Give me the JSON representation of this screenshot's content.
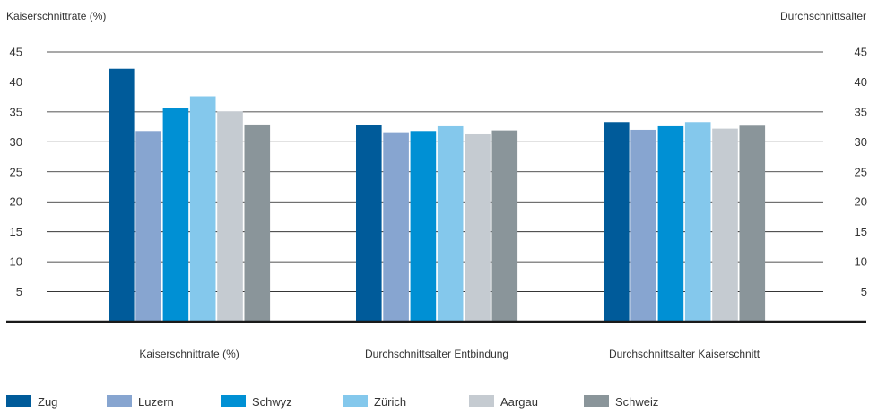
{
  "chart_data": {
    "type": "bar",
    "ylabel_left": "Kaiserschnittrate (%)",
    "ylabel_right": "Durchschnittsalter",
    "ylim": [
      0,
      45
    ],
    "yticks": [
      5,
      10,
      15,
      20,
      25,
      30,
      35,
      40,
      45
    ],
    "grid": true,
    "legend_position": "bottom",
    "categories": [
      "Kaiserschnittrate (%)",
      "Durchschnittsalter Entbindung",
      "Durchschnittsalter Kaiserschnitt"
    ],
    "series": [
      {
        "name": "Zug",
        "color": "#005b9a",
        "values": [
          42.2,
          32.8,
          33.3
        ]
      },
      {
        "name": "Luzern",
        "color": "#87a5d0",
        "values": [
          31.8,
          31.6,
          32.0
        ]
      },
      {
        "name": "Schwyz",
        "color": "#0090d4",
        "values": [
          35.7,
          31.8,
          32.6
        ]
      },
      {
        "name": "Zürich",
        "color": "#84c8ec",
        "values": [
          37.6,
          32.6,
          33.3
        ]
      },
      {
        "name": "Aargau",
        "color": "#c5cbd1",
        "values": [
          35.1,
          31.4,
          32.2
        ]
      },
      {
        "name": "Schweiz",
        "color": "#8a959a",
        "values": [
          32.9,
          31.9,
          32.7
        ]
      }
    ]
  }
}
